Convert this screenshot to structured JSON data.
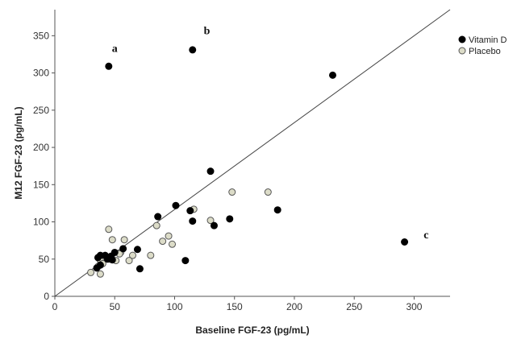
{
  "chart_data": {
    "type": "scatter",
    "xlabel": "Baseline FGF-23 (pg/mL)",
    "ylabel": "M12 FGF-23 (pg/mL)",
    "xlim": [
      0,
      330
    ],
    "ylim": [
      0,
      385
    ],
    "xticks": [
      0,
      50,
      100,
      150,
      200,
      250,
      300
    ],
    "yticks": [
      0,
      50,
      100,
      150,
      200,
      250,
      300,
      350
    ],
    "grid": false,
    "legend_position": "top-right",
    "reference_line": {
      "x": [
        0,
        330
      ],
      "y": [
        0,
        385
      ]
    },
    "series": [
      {
        "name": "Vitamin D",
        "color": "#000000",
        "fill": "#000000",
        "points": [
          [
            45,
            309
          ],
          [
            115,
            331
          ],
          [
            232,
            297
          ],
          [
            292,
            73
          ],
          [
            130,
            168
          ],
          [
            101,
            122
          ],
          [
            86,
            107
          ],
          [
            113,
            115
          ],
          [
            115,
            101
          ],
          [
            146,
            104
          ],
          [
            133,
            95
          ],
          [
            186,
            116
          ],
          [
            109,
            48
          ],
          [
            71,
            37
          ],
          [
            69,
            63
          ],
          [
            57,
            64
          ],
          [
            50,
            59
          ],
          [
            38,
            55
          ],
          [
            42,
            55
          ],
          [
            47,
            54
          ],
          [
            36,
            52
          ],
          [
            44,
            50
          ],
          [
            48,
            49
          ],
          [
            38,
            42
          ],
          [
            35,
            38
          ]
        ]
      },
      {
        "name": "Placebo",
        "color": "#555555",
        "fill": "#dcdcc8",
        "points": [
          [
            45,
            90
          ],
          [
            116,
            117
          ],
          [
            148,
            140
          ],
          [
            178,
            140
          ],
          [
            130,
            102
          ],
          [
            58,
            76
          ],
          [
            48,
            76
          ],
          [
            85,
            95
          ],
          [
            90,
            74
          ],
          [
            95,
            81
          ],
          [
            98,
            70
          ],
          [
            80,
            55
          ],
          [
            65,
            55
          ],
          [
            62,
            48
          ],
          [
            55,
            59
          ],
          [
            51,
            48
          ],
          [
            38,
            48
          ],
          [
            40,
            44
          ],
          [
            36,
            40
          ],
          [
            30,
            32
          ],
          [
            38,
            30
          ],
          [
            54,
            57
          ],
          [
            46,
            50
          ]
        ]
      }
    ],
    "annotations": [
      {
        "text": "a",
        "x": 50,
        "y": 328
      },
      {
        "text": "b",
        "x": 127,
        "y": 352
      },
      {
        "text": "c",
        "x": 310,
        "y": 78
      }
    ]
  }
}
